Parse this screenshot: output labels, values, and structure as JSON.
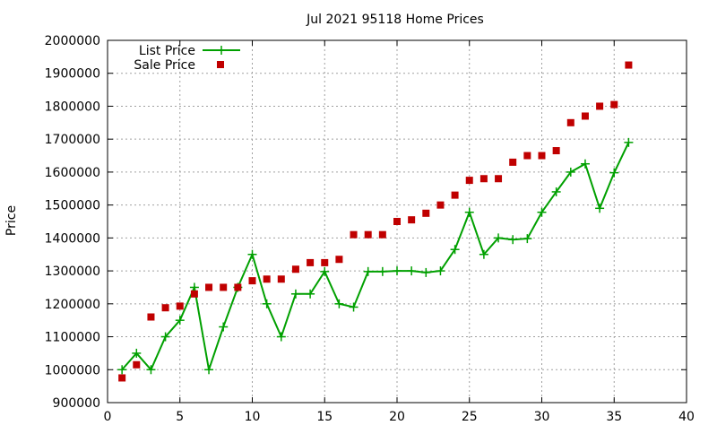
{
  "chart_data": {
    "type": "line",
    "title": "Jul 2021 95118 Home Prices",
    "xlabel": "",
    "ylabel": "Price",
    "xlim": [
      0,
      40
    ],
    "ylim": [
      900000,
      2000000
    ],
    "x_ticks": [
      "0",
      "5",
      "10",
      "15",
      "20",
      "25",
      "30",
      "35",
      "40"
    ],
    "y_ticks": [
      "900000",
      "1000000",
      "1100000",
      "1200000",
      "1300000",
      "1400000",
      "1500000",
      "1600000",
      "1700000",
      "1800000",
      "1900000",
      "2000000"
    ],
    "grid": true,
    "legend_position": "top-left",
    "series": [
      {
        "name": "List Price",
        "style": "line-plus",
        "color": "#00a000",
        "x": [
          1,
          2,
          3,
          4,
          5,
          6,
          7,
          8,
          9,
          10,
          11,
          12,
          13,
          14,
          15,
          16,
          17,
          18,
          19,
          20,
          21,
          22,
          23,
          24,
          25,
          26,
          27,
          28,
          29,
          30,
          31,
          32,
          33,
          34,
          35,
          36
        ],
        "values": [
          1000000,
          1050000,
          1000000,
          1100000,
          1150000,
          1250000,
          1000000,
          1130000,
          1250000,
          1350000,
          1200000,
          1100000,
          1230000,
          1230000,
          1298000,
          1200000,
          1190000,
          1298000,
          1298000,
          1300000,
          1300000,
          1295000,
          1300000,
          1365000,
          1478000,
          1350000,
          1400000,
          1395000,
          1398000,
          1478000,
          1540000,
          1600000,
          1625000,
          1490000,
          1598000,
          1690000
        ]
      },
      {
        "name": "Sale Price",
        "style": "square-marker",
        "color": "#c00000",
        "x": [
          1,
          2,
          3,
          4,
          5,
          6,
          7,
          8,
          9,
          10,
          11,
          12,
          13,
          14,
          15,
          16,
          17,
          18,
          19,
          20,
          21,
          22,
          23,
          24,
          25,
          26,
          27,
          28,
          29,
          30,
          31,
          32,
          33,
          34,
          35,
          36
        ],
        "values": [
          975000,
          1015000,
          1160000,
          1188000,
          1193000,
          1230000,
          1250000,
          1250000,
          1250000,
          1270000,
          1275000,
          1275000,
          1305000,
          1325000,
          1325000,
          1335000,
          1410000,
          1410000,
          1410000,
          1450000,
          1455000,
          1475000,
          1500000,
          1530000,
          1575000,
          1580000,
          1580000,
          1630000,
          1650000,
          1650000,
          1665000,
          1750000,
          1770000,
          1800000,
          1805000,
          1925000
        ]
      }
    ]
  }
}
